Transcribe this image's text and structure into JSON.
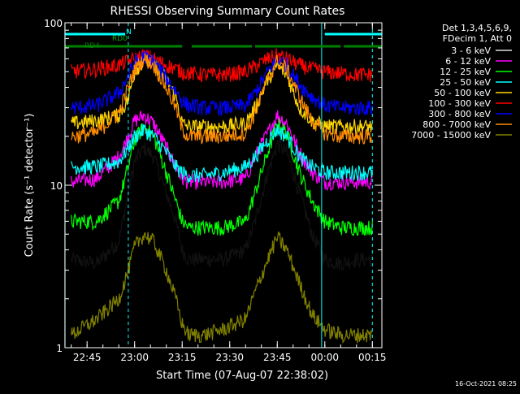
{
  "chart_data": {
    "type": "line",
    "title": "RHESSI Observing Summary Count Rates",
    "xlabel": "Start Time (07-Aug-07 22:38:02)",
    "ylabel": "Count Rate (s⁻¹ detector⁻¹)",
    "y_scale": "log",
    "ylim": [
      1,
      100
    ],
    "xlim": [
      "22:38:02",
      "00:18:00"
    ],
    "x_ticks": [
      "22:45",
      "23:00",
      "23:15",
      "23:30",
      "23:45",
      "00:00",
      "00:15"
    ],
    "y_ticks": [
      "1",
      "10",
      "100"
    ],
    "legend_position": "right",
    "legend_header": [
      "Det 1,3,4,5,6,9,",
      "FDecim 1, Att 0"
    ],
    "footer_date": "16-Oct-2021 08:25",
    "flags": {
      "labels": [
        "N",
        "RD0",
        "RD4"
      ],
      "N_segments": [
        [
          "22:38",
          "22:57"
        ],
        [
          "00:00",
          "00:18"
        ]
      ],
      "RD4_segments": [
        [
          "22:38",
          "23:15"
        ],
        [
          "23:18",
          "23:37"
        ],
        [
          "23:38",
          "00:05"
        ],
        [
          "00:06",
          "00:18"
        ]
      ]
    },
    "vertical_markers": [
      {
        "time": "22:38",
        "style": "solid"
      },
      {
        "time": "22:58",
        "style": "dashed"
      },
      {
        "time": "23:59",
        "style": "solid"
      },
      {
        "time": "00:15",
        "style": "dashed"
      }
    ],
    "series": [
      {
        "name": "3 - 6 keV",
        "color": "#000000",
        "x": [
          "22:40",
          "22:48",
          "22:55",
          "22:58",
          "23:00",
          "23:03",
          "23:06",
          "23:10",
          "23:13",
          "23:15",
          "23:17",
          "23:22",
          "23:28",
          "23:35",
          "23:38",
          "23:42",
          "23:45",
          "23:48",
          "23:52",
          "23:56",
          "00:00",
          "00:05",
          "00:10",
          "00:15"
        ],
        "y": [
          3.5,
          3.3,
          4.5,
          9,
          14,
          17,
          15,
          9,
          6,
          4,
          3.5,
          3.5,
          3.5,
          4,
          6,
          12,
          18,
          16,
          9,
          5,
          3.5,
          3.3,
          3.5,
          3.5
        ]
      },
      {
        "name": "6 - 12 keV",
        "color": "#ff00ff",
        "x": [
          "22:40",
          "22:48",
          "22:55",
          "22:58",
          "23:00",
          "23:03",
          "23:06",
          "23:10",
          "23:13",
          "23:15",
          "23:17",
          "23:22",
          "23:28",
          "23:35",
          "23:38",
          "23:42",
          "23:45",
          "23:48",
          "23:52",
          "23:56",
          "00:00",
          "00:05",
          "00:10",
          "00:15"
        ],
        "y": [
          10.5,
          11,
          15,
          20,
          25,
          27,
          24,
          17,
          13,
          11,
          10.5,
          10.5,
          10.5,
          11,
          15,
          21,
          27,
          24,
          16,
          12,
          10.5,
          10.5,
          10.5,
          10.5
        ]
      },
      {
        "name": "12 - 25 keV",
        "color": "#00ff00",
        "x": [
          "22:40",
          "22:48",
          "22:55",
          "22:58",
          "23:00",
          "23:03",
          "23:06",
          "23:10",
          "23:13",
          "23:15",
          "23:17",
          "23:22",
          "23:28",
          "23:35",
          "23:38",
          "23:42",
          "23:45",
          "23:48",
          "23:52",
          "23:56",
          "00:00",
          "00:05",
          "00:10",
          "00:15"
        ],
        "y": [
          6,
          6,
          8,
          13,
          19,
          23,
          20,
          12,
          8,
          6,
          5.5,
          5.5,
          5.5,
          6,
          9,
          16,
          24,
          21,
          12,
          8,
          6,
          5.5,
          5.5,
          5.5
        ]
      },
      {
        "name": "25 - 50 keV",
        "color": "#00ffff",
        "x": [
          "22:40",
          "22:48",
          "22:55",
          "22:58",
          "23:00",
          "23:03",
          "23:06",
          "23:10",
          "23:13",
          "23:15",
          "23:17",
          "23:22",
          "23:28",
          "23:35",
          "23:38",
          "23:42",
          "23:45",
          "23:48",
          "23:52",
          "23:56",
          "00:00",
          "00:05",
          "00:10",
          "00:15"
        ],
        "y": [
          13,
          13,
          14,
          17,
          20,
          22,
          20,
          16,
          13,
          12,
          11.5,
          11.5,
          12,
          13,
          15,
          19,
          22,
          20,
          15,
          13,
          12,
          12,
          12,
          12
        ]
      },
      {
        "name": "50 - 100 keV",
        "color": "#ffd700",
        "x": [
          "22:40",
          "22:48",
          "22:55",
          "22:58",
          "23:00",
          "23:03",
          "23:06",
          "23:10",
          "23:13",
          "23:15",
          "23:17",
          "23:22",
          "23:28",
          "23:35",
          "23:38",
          "23:42",
          "23:45",
          "23:48",
          "23:52",
          "23:56",
          "00:00",
          "00:05",
          "00:10",
          "00:15"
        ],
        "y": [
          24,
          25,
          27,
          34,
          50,
          60,
          57,
          45,
          35,
          24,
          23,
          23,
          23,
          24,
          30,
          45,
          55,
          48,
          30,
          25,
          23,
          23,
          23,
          23
        ]
      },
      {
        "name": "100 - 300 keV",
        "color": "#ff0000",
        "x": [
          "22:40",
          "22:48",
          "22:55",
          "22:58",
          "23:00",
          "23:03",
          "23:06",
          "23:10",
          "23:13",
          "23:15",
          "23:17",
          "23:22",
          "23:28",
          "23:35",
          "23:38",
          "23:42",
          "23:45",
          "23:48",
          "23:52",
          "23:56",
          "00:00",
          "00:05",
          "00:10",
          "00:15"
        ],
        "y": [
          50,
          52,
          55,
          58,
          60,
          63,
          60,
          55,
          52,
          50,
          49,
          48,
          48,
          50,
          54,
          60,
          63,
          60,
          55,
          52,
          50,
          49,
          48,
          48
        ]
      },
      {
        "name": "300 - 800 keV",
        "color": "#0000ff",
        "x": [
          "22:40",
          "22:48",
          "22:55",
          "22:58",
          "23:00",
          "23:03",
          "23:06",
          "23:10",
          "23:13",
          "23:15",
          "23:17",
          "23:22",
          "23:28",
          "23:35",
          "23:38",
          "23:42",
          "23:45",
          "23:48",
          "23:52",
          "23:56",
          "00:00",
          "00:05",
          "00:10",
          "00:15"
        ],
        "y": [
          30,
          31,
          37,
          47,
          57,
          62,
          58,
          46,
          38,
          33,
          31,
          30,
          30,
          31,
          37,
          50,
          60,
          55,
          42,
          35,
          31,
          30,
          30,
          30
        ]
      },
      {
        "name": "800 - 7000 keV",
        "color": "#ff8c00",
        "x": [
          "22:40",
          "22:48",
          "22:55",
          "22:58",
          "23:00",
          "23:03",
          "23:06",
          "23:10",
          "23:13",
          "23:15",
          "23:17",
          "23:22",
          "23:28",
          "23:35",
          "23:38",
          "23:42",
          "23:45",
          "23:48",
          "23:52",
          "23:56",
          "00:00",
          "00:05",
          "00:10",
          "00:15"
        ],
        "y": [
          20,
          21,
          28,
          40,
          52,
          60,
          55,
          40,
          30,
          22,
          20,
          20,
          20,
          21,
          28,
          45,
          58,
          52,
          35,
          25,
          21,
          20,
          20,
          20
        ]
      },
      {
        "name": "7000 - 15000 keV",
        "color": "#808000",
        "x": [
          "22:40",
          "22:48",
          "22:55",
          "22:58",
          "23:00",
          "23:03",
          "23:06",
          "23:10",
          "23:13",
          "23:15",
          "23:17",
          "23:22",
          "23:28",
          "23:35",
          "23:38",
          "23:42",
          "23:45",
          "23:48",
          "23:52",
          "23:56",
          "00:00",
          "00:05",
          "00:10",
          "00:15"
        ],
        "y": [
          1.2,
          1.5,
          2,
          3,
          4.2,
          5,
          4.5,
          3,
          2,
          1.4,
          1.2,
          1.2,
          1.3,
          1.5,
          2.2,
          3.5,
          4.8,
          4,
          2.5,
          1.6,
          1.3,
          1.2,
          1.2,
          1.2
        ]
      }
    ]
  }
}
